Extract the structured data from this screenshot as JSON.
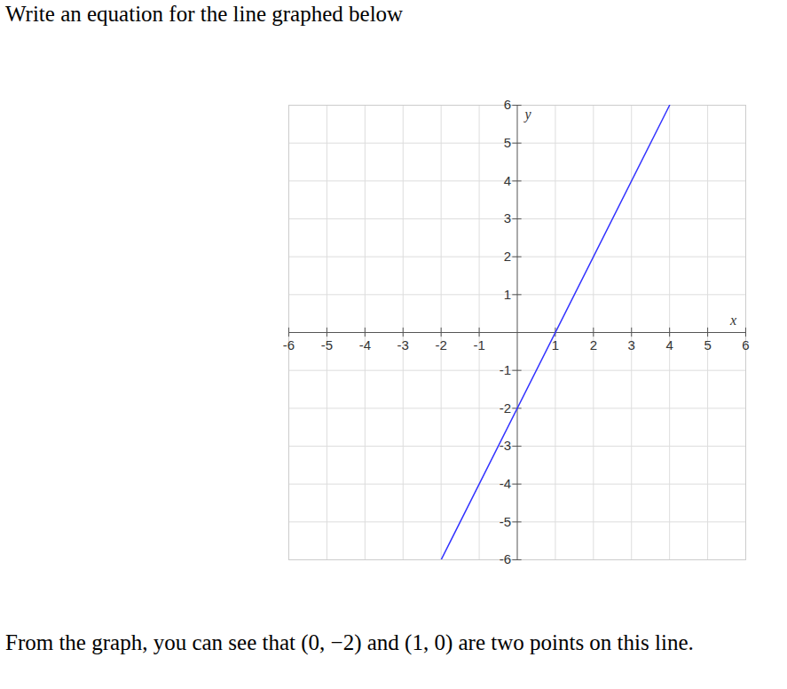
{
  "chart_data": {
    "type": "line",
    "title": "Write an equation for the line graphed below",
    "caption": "From the graph, you can see that (0, −2) and (1, 0) are two points on this line.",
    "x_label": "x",
    "y_label": "y",
    "x": [
      -2,
      4
    ],
    "values": [
      -6,
      6
    ],
    "color": "#3333ff",
    "xlim": [
      -6,
      6
    ],
    "ylim": [
      -6,
      6
    ],
    "xticks": [
      -6,
      -5,
      -4,
      -3,
      -2,
      -1,
      1,
      2,
      3,
      4,
      5,
      6
    ],
    "yticks": [
      -6,
      -5,
      -4,
      -3,
      -2,
      -1,
      1,
      2,
      3,
      4,
      5,
      6
    ],
    "grid": true
  }
}
